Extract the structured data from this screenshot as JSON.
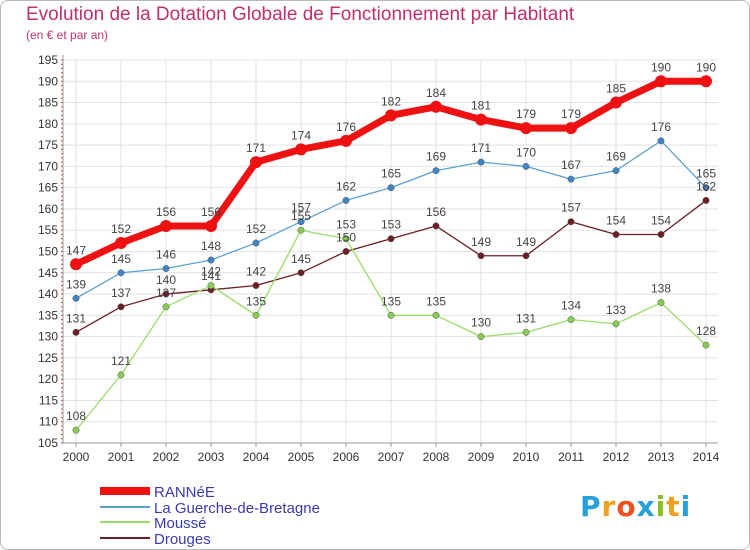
{
  "header": {
    "title": "Evolution de la Dotation Globale de Fonctionnement par Habitant",
    "subtitle": "(en € et par an)"
  },
  "brand": {
    "logo_text": "Proxiti"
  },
  "chart_data": {
    "type": "line",
    "title": "Evolution de la Dotation Globale de Fonctionnement par Habitant",
    "subtitle": "(en € et par an)",
    "xlabel": "",
    "ylabel": "",
    "x": [
      "2000",
      "2001",
      "2002",
      "2003",
      "2004",
      "2005",
      "2006",
      "2007",
      "2008",
      "2009",
      "2010",
      "2011",
      "2012",
      "2013",
      "2014"
    ],
    "ylim": [
      105,
      195
    ],
    "yticks": [
      105,
      110,
      115,
      120,
      125,
      130,
      135,
      140,
      145,
      150,
      155,
      160,
      165,
      170,
      175,
      180,
      185,
      190,
      195
    ],
    "grid": true,
    "legend_position": "bottom-left",
    "series": [
      {
        "name": "RANNéE",
        "color": "#ee1111",
        "values": [
          147,
          152,
          156,
          156,
          171,
          174,
          176,
          182,
          184,
          181,
          179,
          179,
          185,
          190,
          190
        ]
      },
      {
        "name": "La Guerche-de-Bretagne",
        "color": "#5ca0d2",
        "values": [
          139,
          145,
          146,
          148,
          152,
          157,
          162,
          165,
          169,
          171,
          170,
          167,
          169,
          176,
          165
        ]
      },
      {
        "name": "Moussé",
        "color": "#99dd66",
        "values": [
          108,
          121,
          137,
          142,
          135,
          155,
          153,
          135,
          135,
          130,
          131,
          134,
          133,
          138,
          128
        ]
      },
      {
        "name": "Drouges",
        "color": "#6b1f24",
        "values": [
          131,
          137,
          140,
          141,
          142,
          145,
          150,
          153,
          156,
          149,
          149,
          157,
          154,
          154,
          162
        ]
      }
    ]
  }
}
